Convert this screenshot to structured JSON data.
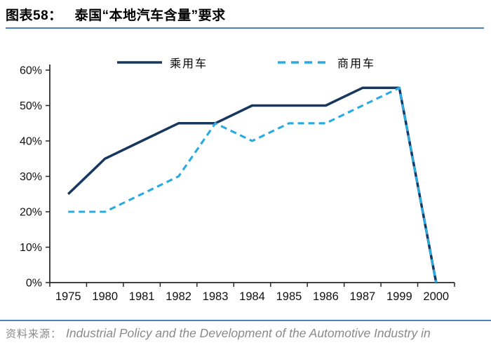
{
  "header": {
    "title_prefix": "图表58：",
    "title": "泰国“本地汽车含量”要求"
  },
  "footer": {
    "source_label": "资料来源：",
    "source_text": "Industrial Policy and the Development of the Automotive Industry in"
  },
  "colors": {
    "accent_rule": "#4F81BD",
    "axis": "#262626",
    "passenger_line": "#17375E",
    "commercial_line": "#29ABE2",
    "muted_text": "#8a8a8a"
  },
  "chart_data": {
    "type": "line",
    "title": "泰国“本地汽车含量”要求",
    "categories": [
      "1975",
      "1980",
      "1981",
      "1982",
      "1983",
      "1984",
      "1985",
      "1986",
      "1987",
      "1999",
      "2000"
    ],
    "series": [
      {
        "name": "乘用车",
        "style": "solid",
        "color": "#17375E",
        "values": [
          25,
          35,
          40,
          45,
          45,
          50,
          50,
          50,
          55,
          55,
          0
        ]
      },
      {
        "name": "商用车",
        "style": "dashed",
        "color": "#29ABE2",
        "values": [
          20,
          20,
          25,
          30,
          45,
          40,
          45,
          45,
          50,
          55,
          0
        ]
      }
    ],
    "ylim": [
      0,
      60
    ],
    "ytick_labels": [
      "0%",
      "10%",
      "20%",
      "30%",
      "40%",
      "50%",
      "60%"
    ],
    "legend_position": "top",
    "grid": false,
    "xlabel": "",
    "ylabel": ""
  }
}
